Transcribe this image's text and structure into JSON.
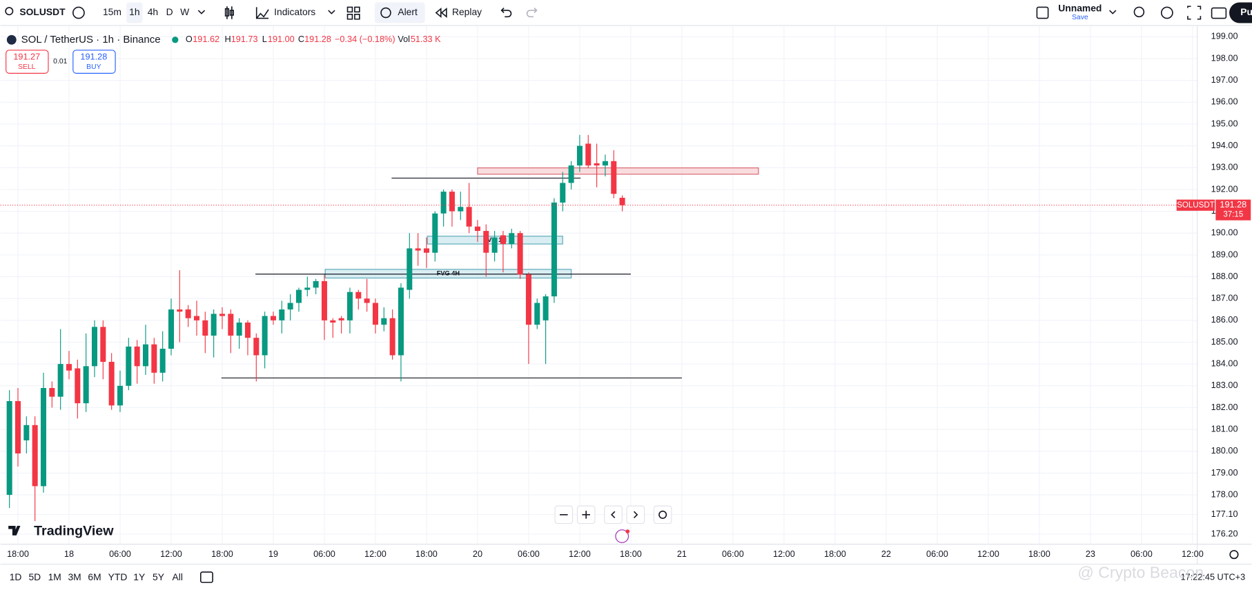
{
  "toolbar": {
    "symbol": "SOLUSDT",
    "intervals": [
      "15m",
      "1h",
      "4h",
      "D",
      "W"
    ],
    "indicators": "Indicators",
    "alert": "Alert",
    "replay": "Replay",
    "layout_name": "Unnamed",
    "layout_save": "Save",
    "publish": "Pu"
  },
  "legend": {
    "title": "SOL / TetherUS · 1h · Binance",
    "open_label": "O",
    "open": "191.62",
    "high_label": "H",
    "high": "191.73",
    "low_label": "L",
    "low": "191.00",
    "close_label": "C",
    "close": "191.28",
    "change": "−0.34 (−0.18%)",
    "volume_label": "Vol",
    "volume": "51.33 K"
  },
  "trade": {
    "sell_price": "191.27",
    "sell": "SELL",
    "spread": "0.01",
    "buy_price": "191.28",
    "buy": "BUY"
  },
  "chart_data": {
    "type": "candlestick",
    "up_color": "#089981",
    "down_color": "#f23645",
    "grid": true,
    "x": [
      -1,
      0,
      1,
      2,
      3,
      4,
      5,
      6,
      7,
      8,
      9,
      10,
      11,
      12,
      13,
      14,
      15,
      16,
      17,
      18,
      19,
      20,
      21,
      22,
      23,
      24,
      25,
      26,
      27,
      28,
      29,
      30,
      31,
      32,
      33,
      34,
      35,
      36,
      37,
      38,
      39,
      40,
      41,
      42,
      43,
      44,
      45,
      46,
      47,
      48,
      49,
      50,
      51,
      52,
      53,
      54,
      55,
      56,
      57,
      58,
      59,
      60,
      61,
      62,
      63,
      64,
      65,
      66,
      67,
      68,
      69,
      70,
      71
    ],
    "open": [
      178.0,
      182.3,
      180.5,
      181.2,
      178.4,
      182.9,
      182.5,
      184.0,
      183.8,
      182.2,
      183.9,
      185.7,
      184.1,
      182.1,
      183.0,
      184.8,
      183.9,
      184.9,
      183.6,
      184.7,
      186.5,
      186.5,
      186.2,
      186.0,
      185.3,
      186.3,
      186.3,
      185.3,
      185.9,
      185.2,
      184.4,
      186.2,
      186.0,
      186.5,
      186.8,
      187.4,
      187.5,
      187.8,
      186.0,
      186.1,
      186.0,
      187.3,
      187.0,
      186.8,
      185.8,
      186.1,
      184.4,
      187.4,
      189.3,
      189.3,
      189.1,
      190.9,
      191.9,
      191.0,
      191.2,
      190.3,
      190.1,
      189.1,
      189.9,
      189.5,
      190.0,
      188.1,
      185.8,
      186.0,
      187.1,
      191.4,
      192.3,
      193.1,
      194.1,
      193.2,
      193.1,
      193.3,
      191.62
    ],
    "high": [
      182.8,
      182.9,
      181.6,
      181.6,
      183.6,
      183.2,
      185.6,
      184.6,
      184.2,
      185.4,
      186.0,
      186.0,
      184.5,
      183.7,
      185.2,
      185.1,
      185.8,
      185.2,
      185.5,
      187.0,
      188.3,
      186.7,
      186.9,
      186.4,
      186.5,
      186.6,
      186.5,
      186.1,
      186.0,
      185.4,
      186.4,
      186.4,
      186.9,
      187.2,
      187.5,
      188.0,
      187.9,
      188.1,
      186.1,
      186.2,
      187.5,
      187.4,
      187.9,
      187.0,
      186.6,
      186.5,
      187.7,
      190.0,
      190.0,
      189.8,
      191.0,
      192.0,
      192.0,
      191.9,
      192.3,
      190.6,
      190.4,
      190.1,
      190.1,
      190.2,
      190.1,
      188.2,
      187.0,
      187.2,
      191.6,
      192.8,
      193.3,
      194.5,
      194.5,
      194.1,
      193.6,
      193.8,
      191.73
    ],
    "low": [
      177.4,
      179.3,
      179.9,
      176.8,
      178.1,
      182.0,
      181.9,
      183.3,
      181.5,
      181.8,
      183.4,
      183.3,
      181.9,
      181.8,
      182.8,
      183.1,
      183.5,
      183.1,
      183.2,
      184.4,
      185.0,
      185.7,
      185.3,
      184.5,
      184.3,
      185.6,
      184.5,
      184.7,
      184.4,
      183.2,
      183.8,
      185.8,
      185.4,
      186.0,
      186.4,
      187.1,
      187.2,
      185.1,
      185.2,
      185.4,
      185.4,
      186.5,
      186.4,
      185.4,
      185.5,
      184.2,
      183.2,
      187.0,
      188.5,
      188.4,
      188.7,
      190.3,
      190.3,
      190.6,
      190.0,
      189.6,
      188.0,
      188.7,
      188.2,
      189.3,
      187.9,
      184.0,
      185.6,
      184.0,
      186.8,
      191.0,
      192.0,
      192.8,
      193.0,
      192.1,
      192.6,
      191.6,
      191.0
    ],
    "close": [
      182.3,
      179.9,
      181.2,
      178.4,
      182.9,
      182.5,
      184.0,
      183.7,
      182.2,
      183.9,
      185.7,
      184.1,
      182.1,
      183.0,
      184.8,
      183.9,
      184.9,
      183.6,
      184.7,
      186.5,
      186.4,
      186.1,
      186.0,
      185.3,
      186.3,
      186.2,
      185.3,
      185.9,
      185.2,
      184.4,
      186.2,
      186.0,
      186.5,
      186.8,
      187.4,
      187.5,
      187.8,
      186.0,
      185.9,
      186.0,
      187.3,
      187.0,
      186.8,
      185.8,
      186.1,
      184.4,
      187.5,
      189.3,
      189.2,
      189.1,
      190.9,
      191.9,
      191.0,
      191.2,
      190.3,
      190.1,
      189.1,
      189.8,
      189.5,
      190.0,
      188.1,
      185.8,
      186.8,
      187.1,
      191.4,
      192.3,
      193.1,
      194.0,
      193.1,
      193.1,
      193.3,
      191.8,
      191.28
    ],
    "xlim": [
      -2.06,
      138.56
    ],
    "xticks": [
      {
        "value": 0,
        "label": "18:00"
      },
      {
        "value": 6,
        "label": "18"
      },
      {
        "value": 12,
        "label": "06:00"
      },
      {
        "value": 18,
        "label": "12:00"
      },
      {
        "value": 24,
        "label": "18:00"
      },
      {
        "value": 30,
        "label": "19"
      },
      {
        "value": 36,
        "label": "06:00"
      },
      {
        "value": 42,
        "label": "12:00"
      },
      {
        "value": 48,
        "label": "18:00"
      },
      {
        "value": 54,
        "label": "20"
      },
      {
        "value": 60,
        "label": "06:00"
      },
      {
        "value": 66,
        "label": "12:00"
      },
      {
        "value": 72,
        "label": "18:00"
      },
      {
        "value": 78,
        "label": "21"
      },
      {
        "value": 84,
        "label": "06:00"
      },
      {
        "value": 90,
        "label": "12:00"
      },
      {
        "value": 96,
        "label": "18:00"
      },
      {
        "value": 102,
        "label": "22"
      },
      {
        "value": 108,
        "label": "06:00"
      },
      {
        "value": 114,
        "label": "12:00"
      },
      {
        "value": 120,
        "label": "18:00"
      },
      {
        "value": 126,
        "label": "23"
      },
      {
        "value": 132,
        "label": "06:00"
      },
      {
        "value": 138,
        "label": "12:00"
      }
    ],
    "ylim": [
      175.74,
      199.48
    ],
    "yticks": [
      {
        "value": 199,
        "label": "199.00"
      },
      {
        "value": 198,
        "label": "198.00"
      },
      {
        "value": 197,
        "label": "197.00"
      },
      {
        "value": 196,
        "label": "196.00"
      },
      {
        "value": 195,
        "label": "195.00"
      },
      {
        "value": 194,
        "label": "194.00"
      },
      {
        "value": 193,
        "label": "193.00"
      },
      {
        "value": 192,
        "label": "192.00"
      },
      {
        "value": 191,
        "label": "191.00"
      },
      {
        "value": 190,
        "label": "190.00"
      },
      {
        "value": 189,
        "label": "189.00"
      },
      {
        "value": 188,
        "label": "188.00"
      },
      {
        "value": 187,
        "label": "187.00"
      },
      {
        "value": 186,
        "label": "186.00"
      },
      {
        "value": 185,
        "label": "185.00"
      },
      {
        "value": 184,
        "label": "184.00"
      },
      {
        "value": 183,
        "label": "183.00"
      },
      {
        "value": 182,
        "label": "182.00"
      },
      {
        "value": 181,
        "label": "181.00"
      },
      {
        "value": 180,
        "label": "180.00"
      },
      {
        "value": 179,
        "label": "179.00"
      },
      {
        "value": 178,
        "label": "178.00"
      },
      {
        "value": 177.1,
        "label": "177.10"
      },
      {
        "value": 176.2,
        "label": "176.20"
      }
    ],
    "last_price": 191.28,
    "countdown": "37:15",
    "symbol_tag": "SOLUSDT",
    "levels": [
      {
        "value": 192.52,
        "x_start": 43.9,
        "x_end": 66.1
      },
      {
        "value": 188.12,
        "x_start": 27.9,
        "x_end": 72
      },
      {
        "value": 183.36,
        "x_start": 23.9,
        "x_end": 78
      }
    ],
    "zones": [
      {
        "low": 192.7,
        "high": 192.99,
        "x_start": 54,
        "x_end": 87,
        "fill": "#f7d3d6",
        "stroke": "#d9646f"
      },
      {
        "label": "FVG 4H",
        "low": 187.94,
        "high": 188.34,
        "x_start": 36.1,
        "x_end": 65,
        "fill": "#cfe9ef",
        "stroke": "#5aa9b8"
      },
      {
        "label": "FVG 1H",
        "low": 189.5,
        "high": 189.86,
        "x_start": 48.1,
        "x_end": 64,
        "fill": "#cfe9ef",
        "stroke": "#5aa9b8"
      }
    ]
  },
  "range_bar": {
    "ranges": [
      "1D",
      "5D",
      "1M",
      "3M",
      "6M",
      "YTD",
      "1Y",
      "5Y",
      "All"
    ],
    "clock": "17:22:45 UTC+3"
  },
  "branding": {
    "logo": "TradingView",
    "watermark": "@ Crypto Beacon"
  }
}
